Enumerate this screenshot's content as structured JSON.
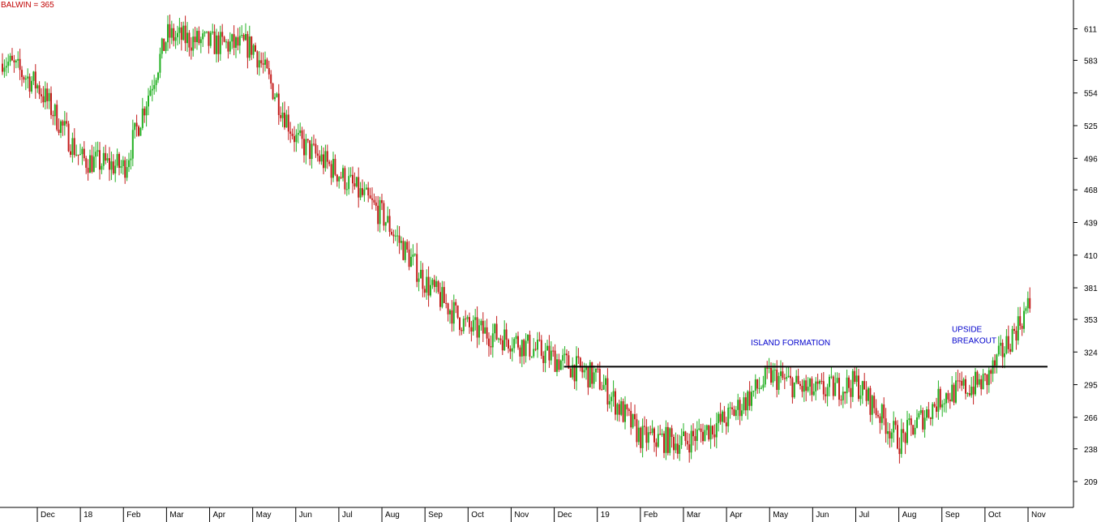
{
  "chart_data": {
    "type": "candlestick",
    "title": "BALWIN = 365",
    "title_color": "#c00000",
    "up_color": "#22b022",
    "down_color": "#c41d1d",
    "annotation_color": "#0000cc",
    "y_ticks": [
      611,
      583,
      554,
      525,
      496,
      468,
      439,
      410,
      381,
      353,
      324,
      295,
      266,
      238,
      209
    ],
    "ylim": [
      186,
      638
    ],
    "x_labels": [
      "Dec",
      "18",
      "Feb",
      "Mar",
      "Apr",
      "May",
      "Jun",
      "Jul",
      "Aug",
      "Sep",
      "Oct",
      "Nov",
      "Dec",
      "19",
      "Feb",
      "Mar",
      "Apr",
      "May",
      "Jun",
      "Jul",
      "Aug",
      "Sep",
      "Oct",
      "Nov"
    ],
    "months": [
      {
        "label": "Dec",
        "close": 560
      },
      {
        "label": "18",
        "close": 495
      },
      {
        "label": "Feb",
        "close": 488
      },
      {
        "label": "Mar",
        "close": 605
      },
      {
        "label": "Apr",
        "close": 598
      },
      {
        "label": "May",
        "close": 595
      },
      {
        "label": "Jun",
        "close": 512
      },
      {
        "label": "Jul",
        "close": 482
      },
      {
        "label": "Aug",
        "close": 445
      },
      {
        "label": "Sep",
        "close": 385
      },
      {
        "label": "Oct",
        "close": 345
      },
      {
        "label": "Nov",
        "close": 335
      },
      {
        "label": "Dec",
        "close": 318
      },
      {
        "label": "19",
        "close": 300
      },
      {
        "label": "Feb",
        "close": 248
      },
      {
        "label": "Mar",
        "close": 244
      },
      {
        "label": "Apr",
        "close": 265
      },
      {
        "label": "May",
        "close": 303
      },
      {
        "label": "Jun",
        "close": 288
      },
      {
        "label": "Jul",
        "close": 296
      },
      {
        "label": "Aug",
        "close": 245
      },
      {
        "label": "Sep",
        "close": 285
      },
      {
        "label": "Oct",
        "close": 298
      },
      {
        "label": "Nov",
        "close": 365
      }
    ],
    "resistance": {
      "value": 311,
      "from": "Dec",
      "to": "Nov"
    },
    "annotations": [
      {
        "lines": [
          "ISLAND FORMATION"
        ],
        "value": 330
      },
      {
        "lines": [
          "UPSIDE",
          "BREAKOUT"
        ],
        "value": 342
      }
    ]
  }
}
